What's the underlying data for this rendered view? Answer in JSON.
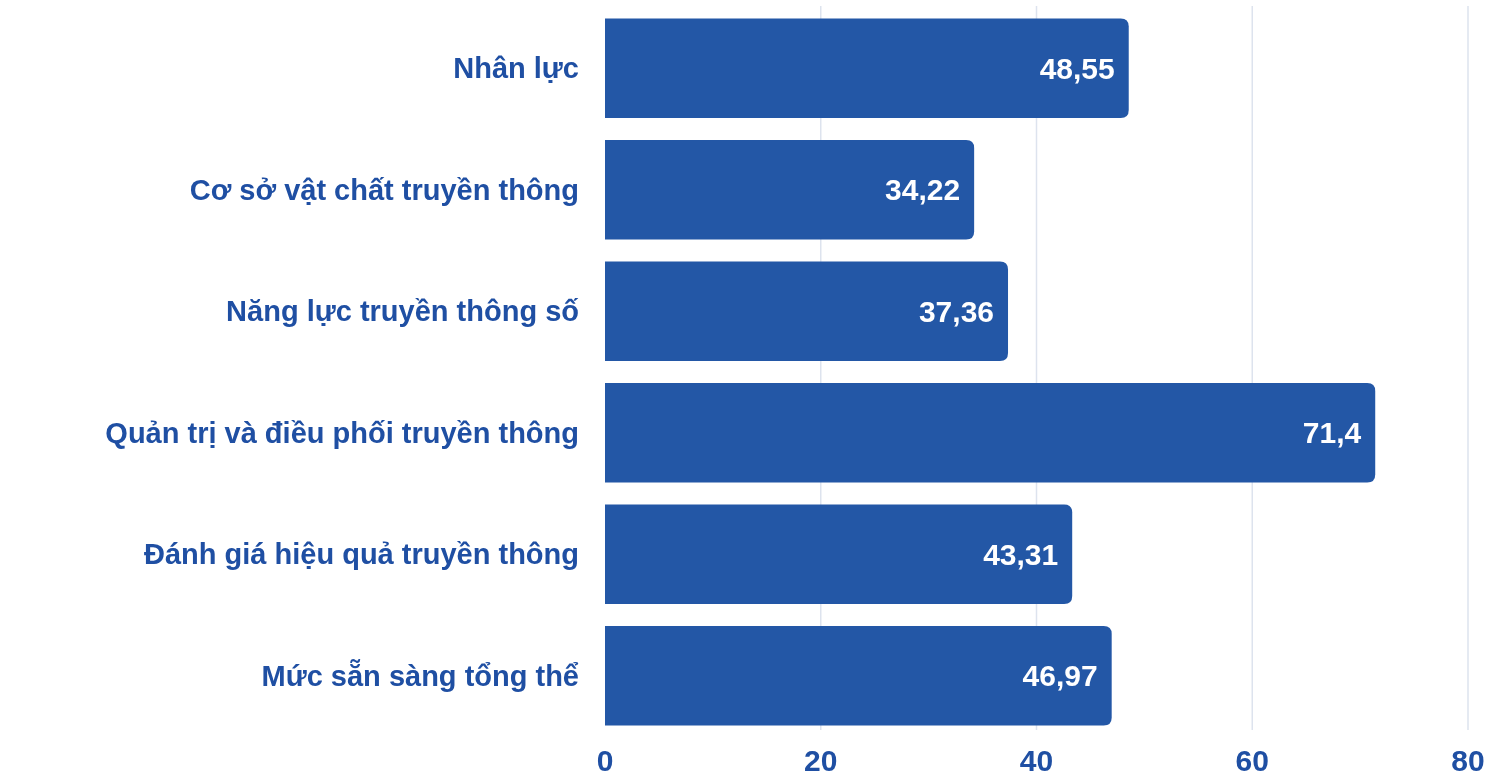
{
  "chart_data": {
    "type": "bar",
    "orientation": "horizontal",
    "categories": [
      "Nhân lực",
      "Cơ sở vật chất truyền thông",
      "Năng lực truyền thông số",
      "Quản trị và điều phối truyền thông",
      "Đánh giá hiệu quả truyền thông",
      "Mức sẵn sàng tổng thể"
    ],
    "values": [
      48.55,
      34.22,
      37.36,
      71.4,
      43.31,
      46.97
    ],
    "value_labels": [
      "48,55",
      "34,22",
      "37,36",
      "71,4",
      "43,31",
      "46,97"
    ],
    "color": "#2357a6",
    "xlim": [
      0,
      80
    ],
    "xticks": [
      0,
      20,
      40,
      60,
      80
    ],
    "grid": "x"
  }
}
